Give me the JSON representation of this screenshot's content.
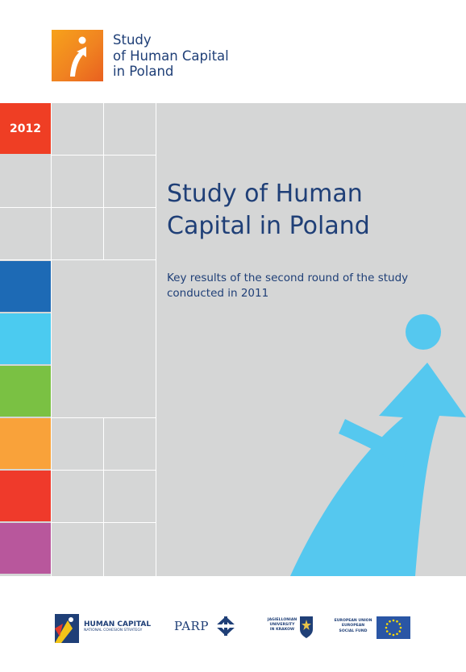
{
  "header": {
    "logo_title_lines": [
      "Study",
      "of Human Capital",
      "in Poland"
    ]
  },
  "cover": {
    "year": "2012",
    "title_lines": [
      "Study of Human",
      "Capital in Poland"
    ],
    "subtitle_lines": [
      "Key results of the second round of the study",
      "conducted in 2011"
    ]
  },
  "colors": {
    "panel_bg": "#d5d6d6",
    "navy": "#1f3f77",
    "year_red": "#ef3e24",
    "squares": [
      "#1d6ab5",
      "#4bcbf0",
      "#7ac143",
      "#f9a23a",
      "#ef3a2b",
      "#b8579c"
    ],
    "figure_blue": "#55c8ef"
  },
  "footer": {
    "human_capital": {
      "title": "HUMAN CAPITAL",
      "subtitle": "NATIONAL COHESION STRATEGY"
    },
    "parp": "PARP",
    "jagiellonian": [
      "JAGIELLONIAN",
      "UNIVERSITY",
      "IN KRAKOW"
    ],
    "eu": [
      "EUROPEAN UNION",
      "EUROPEAN",
      "SOCIAL FUND"
    ]
  }
}
